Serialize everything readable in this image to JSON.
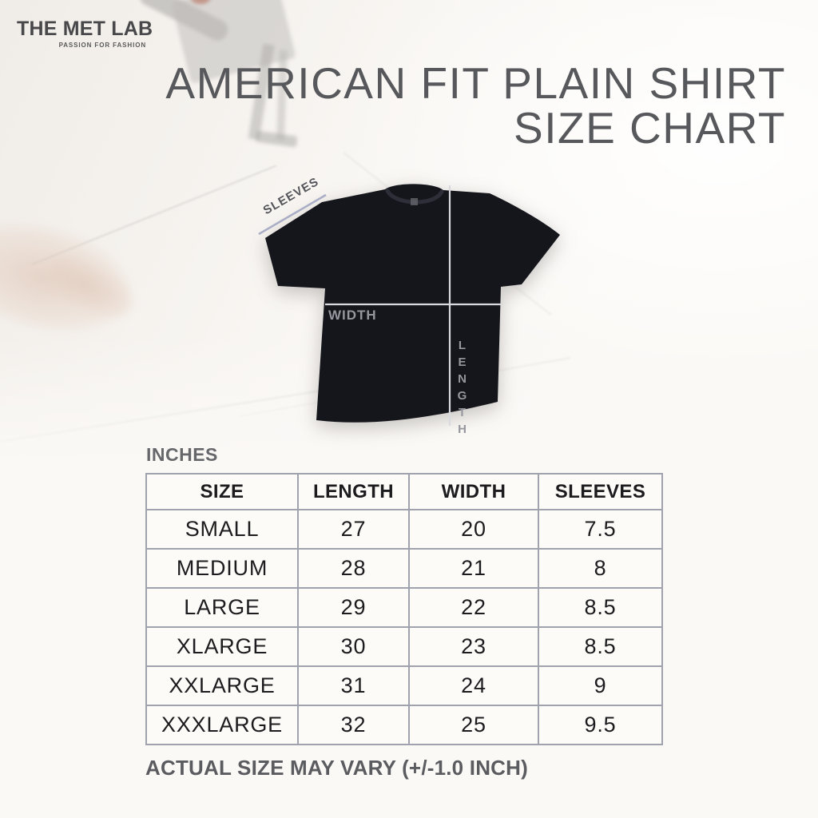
{
  "brand": {
    "name": "THE MET LAB",
    "tagline": "PASSION FOR FASHION"
  },
  "title": {
    "line1": "AMERICAN FIT PLAIN SHIRT",
    "line2": "SIZE CHART"
  },
  "diagram": {
    "shirt_color": "#15151c",
    "measure_line_color": "#d9dade",
    "sleeve_line_color": "#a9aec6",
    "labels": {
      "sleeves": "SLEEVES",
      "width": "WIDTH",
      "length": "LENGTH"
    }
  },
  "units_label": "INCHES",
  "table": {
    "headers": [
      "SIZE",
      "LENGTH",
      "WIDTH",
      "SLEEVES"
    ],
    "rows": [
      [
        "SMALL",
        "27",
        "20",
        "7.5"
      ],
      [
        "MEDIUM",
        "28",
        "21",
        "8"
      ],
      [
        "LARGE",
        "29",
        "22",
        "8.5"
      ],
      [
        "XLARGE",
        "30",
        "23",
        "8.5"
      ],
      [
        "XXLARGE",
        "31",
        "24",
        "9"
      ],
      [
        "XXXLARGE",
        "32",
        "25",
        "9.5"
      ]
    ]
  },
  "footnote": "ACTUAL SIZE MAY VARY (+/-1.0 INCH)",
  "colors": {
    "background": "#fbf9f6",
    "title_text": "#57585b",
    "table_border": "#a0a2ae",
    "table_text": "#1c1c1e",
    "muted_label": "#96969e",
    "footnote_text": "#5b5c60"
  }
}
